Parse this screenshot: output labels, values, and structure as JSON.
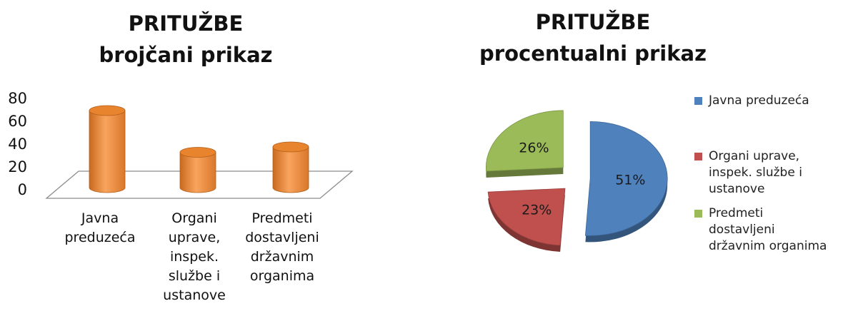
{
  "chart_data": [
    {
      "type": "bar",
      "title_line1": "PRITUŽBE",
      "title_line2": "brojčani prikaz",
      "categories": [
        "Javna preduzeća",
        "Organi uprave, inspek. službe i ustanove",
        "Predmeti dostavljeni državnim organima"
      ],
      "category_lines": [
        [
          "Javna",
          "preduzeća"
        ],
        [
          "Organi",
          "uprave,",
          "inspek.",
          "službe i",
          "ustanove"
        ],
        [
          "Predmeti",
          "dostavljeni",
          "državnim",
          "organima"
        ]
      ],
      "values": [
        72,
        33,
        38
      ],
      "ylim": [
        0,
        80
      ],
      "yticks": [
        "80",
        "60",
        "40",
        "20",
        "0"
      ],
      "grid": false,
      "color": "#F79646"
    },
    {
      "type": "pie",
      "title_line1": "PRITUŽBE",
      "title_line2": "procentualni prikaz",
      "slices": [
        {
          "label": "Javna preduzeća",
          "legend_lines": [
            "Javna preduzeća"
          ],
          "value": 51,
          "text": "51%",
          "color": "#4F81BD"
        },
        {
          "label": "Organi uprave, inspek. službe i ustanove",
          "legend_lines": [
            "Organi uprave,",
            "inspek. službe i",
            "ustanove"
          ],
          "value": 23,
          "text": "23%",
          "color": "#C0504D"
        },
        {
          "label": "Predmeti dostavljeni državnim organima",
          "legend_lines": [
            "Predmeti",
            "dostavljeni",
            "državnim organima"
          ],
          "value": 26,
          "text": "26%",
          "color": "#9BBB59"
        }
      ],
      "legend_position": "right"
    }
  ]
}
